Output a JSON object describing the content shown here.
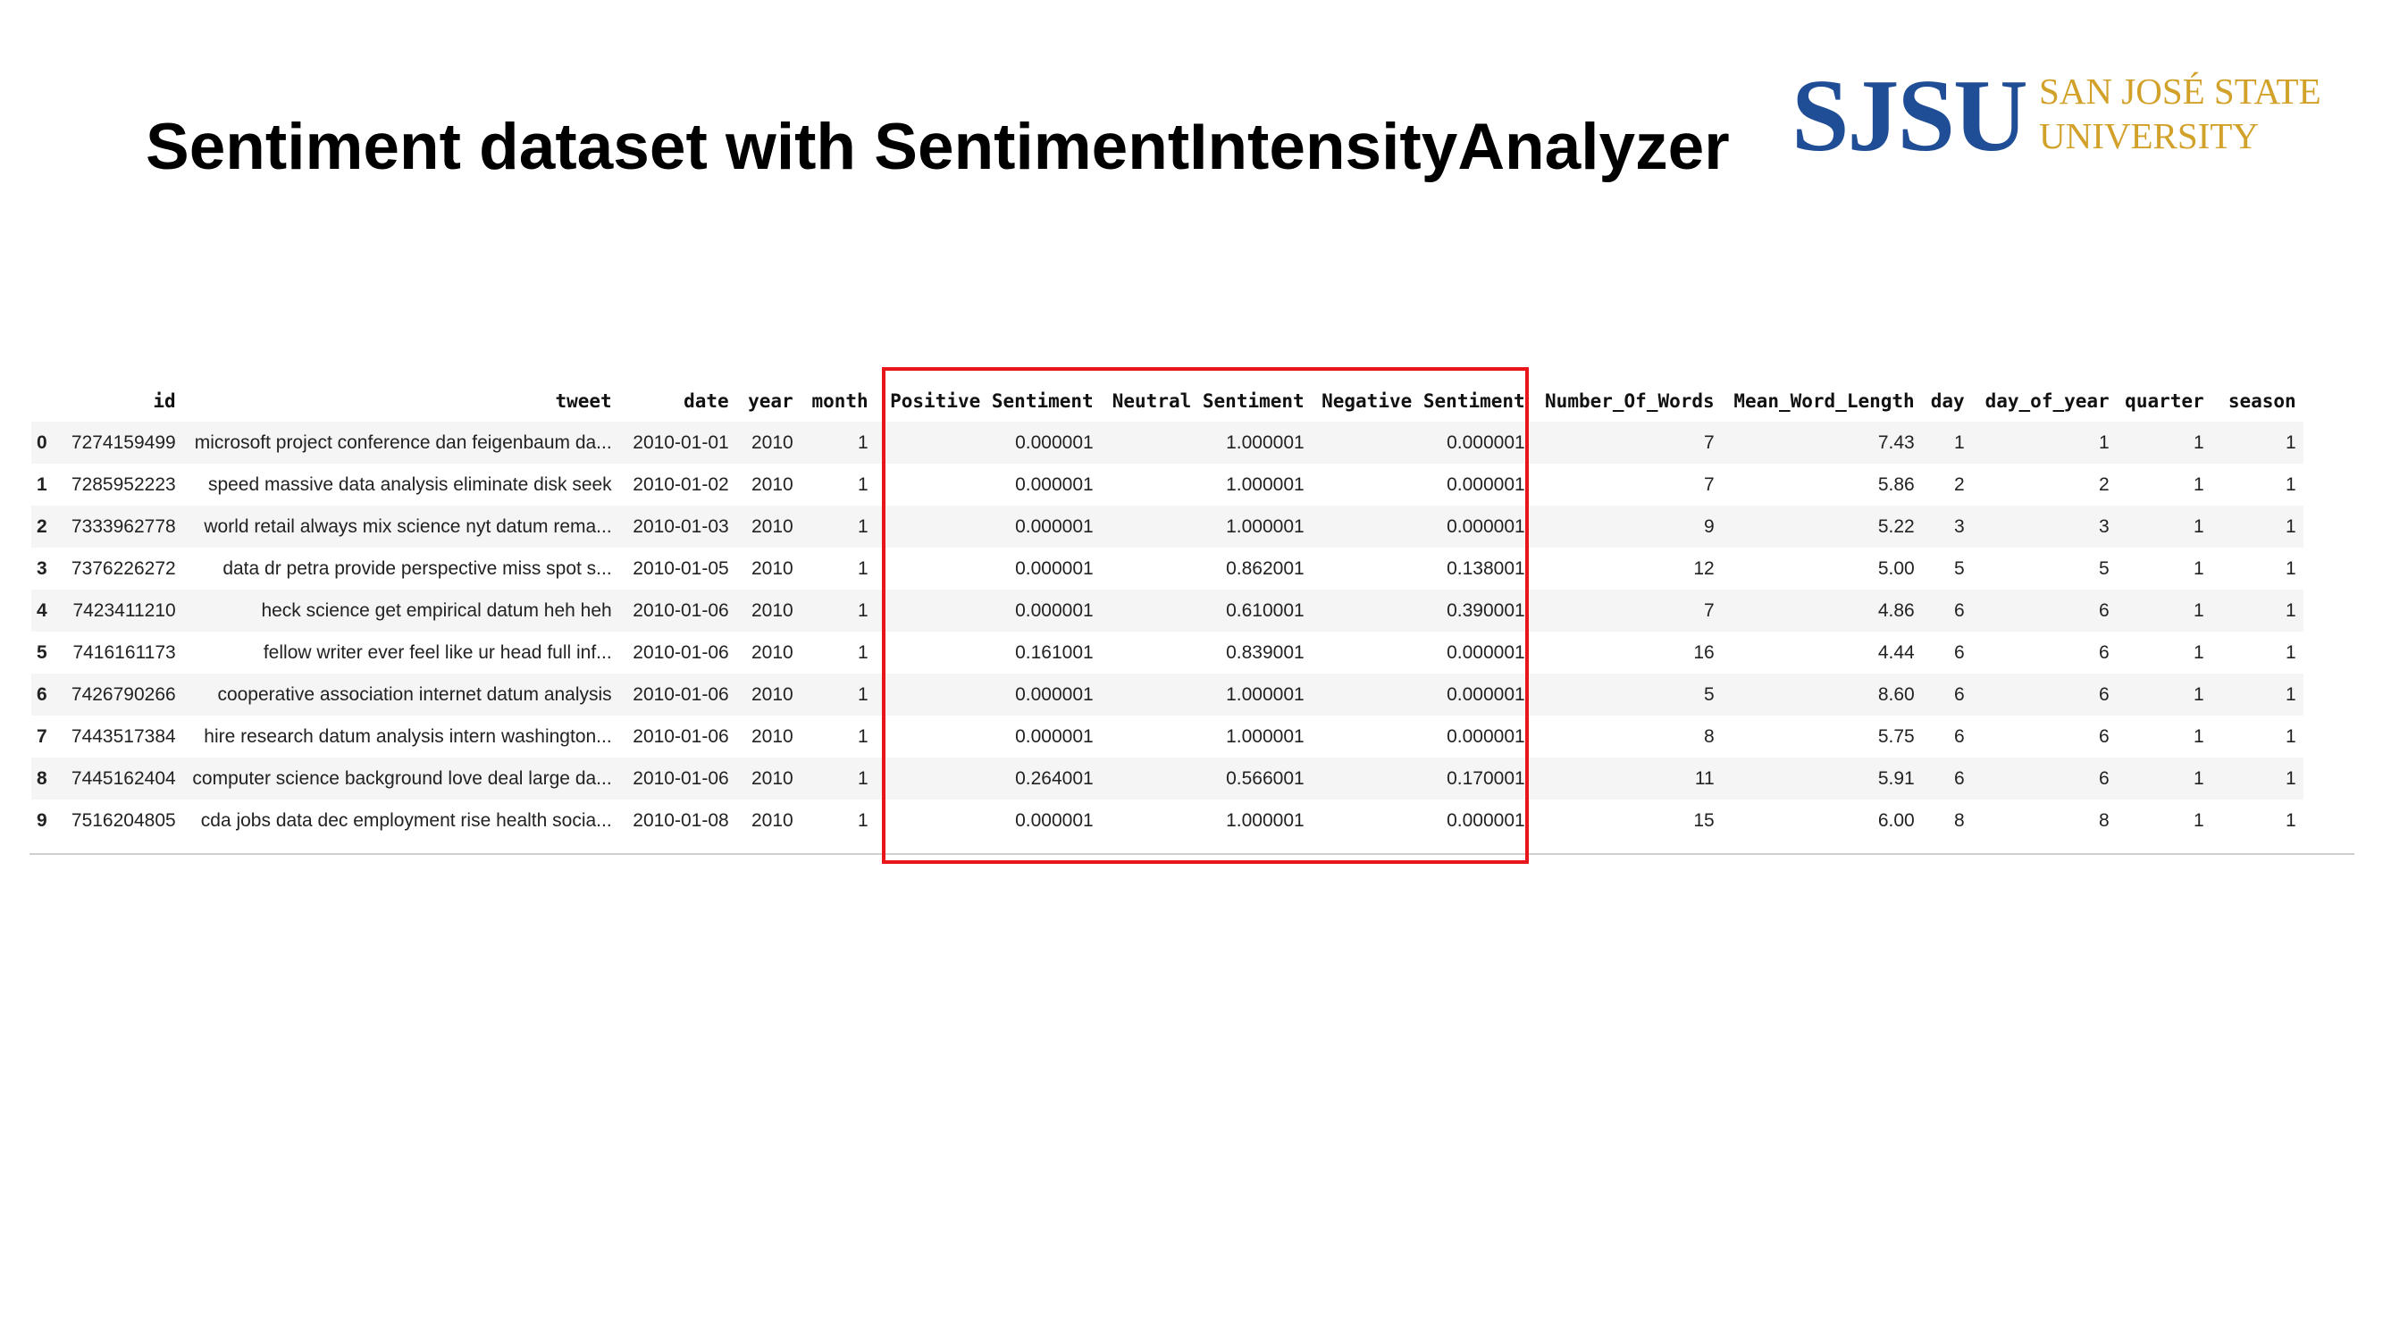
{
  "slide": {
    "title": "Sentiment dataset with SentimentIntensityAnalyzer"
  },
  "logo": {
    "mark": "SJSU",
    "line1": "SAN JOSÉ STATE",
    "line2": "UNIVERSITY",
    "mark_color": "#1f4e96",
    "text_color": "#d2a12a"
  },
  "highlight": {
    "color": "#e8151b",
    "columns": [
      "Positive Sentiment",
      "Neutral Sentiment",
      "Negative Sentiment"
    ]
  },
  "table": {
    "columns": [
      "",
      "id",
      "tweet",
      "date",
      "year",
      "month",
      "Positive Sentiment",
      "Neutral Sentiment",
      "Negative Sentiment",
      "Number_Of_Words",
      "Mean_Word_Length",
      "day",
      "day_of_year",
      "quarter",
      "season"
    ],
    "rows": [
      [
        "0",
        "7274159499",
        "microsoft project conference dan feigenbaum da...",
        "2010-01-01",
        "2010",
        "1",
        "0.000001",
        "1.000001",
        "0.000001",
        "7",
        "7.43",
        "1",
        "1",
        "1",
        "1"
      ],
      [
        "1",
        "7285952223",
        "speed massive data analysis eliminate disk seek",
        "2010-01-02",
        "2010",
        "1",
        "0.000001",
        "1.000001",
        "0.000001",
        "7",
        "5.86",
        "2",
        "2",
        "1",
        "1"
      ],
      [
        "2",
        "7333962778",
        "world retail always mix science nyt datum rema...",
        "2010-01-03",
        "2010",
        "1",
        "0.000001",
        "1.000001",
        "0.000001",
        "9",
        "5.22",
        "3",
        "3",
        "1",
        "1"
      ],
      [
        "3",
        "7376226272",
        "data dr petra provide perspective miss spot s...",
        "2010-01-05",
        "2010",
        "1",
        "0.000001",
        "0.862001",
        "0.138001",
        "12",
        "5.00",
        "5",
        "5",
        "1",
        "1"
      ],
      [
        "4",
        "7423411210",
        "heck science get empirical datum heh heh",
        "2010-01-06",
        "2010",
        "1",
        "0.000001",
        "0.610001",
        "0.390001",
        "7",
        "4.86",
        "6",
        "6",
        "1",
        "1"
      ],
      [
        "5",
        "7416161173",
        "fellow writer ever feel like ur head full inf...",
        "2010-01-06",
        "2010",
        "1",
        "0.161001",
        "0.839001",
        "0.000001",
        "16",
        "4.44",
        "6",
        "6",
        "1",
        "1"
      ],
      [
        "6",
        "7426790266",
        "cooperative association internet datum analysis",
        "2010-01-06",
        "2010",
        "1",
        "0.000001",
        "1.000001",
        "0.000001",
        "5",
        "8.60",
        "6",
        "6",
        "1",
        "1"
      ],
      [
        "7",
        "7443517384",
        "hire research datum analysis intern washington...",
        "2010-01-06",
        "2010",
        "1",
        "0.000001",
        "1.000001",
        "0.000001",
        "8",
        "5.75",
        "6",
        "6",
        "1",
        "1"
      ],
      [
        "8",
        "7445162404",
        "computer science background love deal large da...",
        "2010-01-06",
        "2010",
        "1",
        "0.264001",
        "0.566001",
        "0.170001",
        "11",
        "5.91",
        "6",
        "6",
        "1",
        "1"
      ],
      [
        "9",
        "7516204805",
        "cda jobs data dec employment rise health socia...",
        "2010-01-08",
        "2010",
        "1",
        "0.000001",
        "1.000001",
        "0.000001",
        "15",
        "6.00",
        "8",
        "8",
        "1",
        "1"
      ]
    ]
  }
}
